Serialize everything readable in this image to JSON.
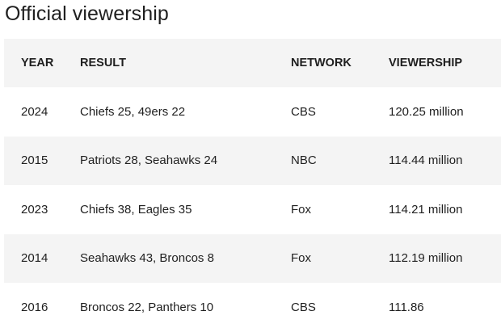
{
  "page": {
    "title": "Official viewership"
  },
  "table": {
    "headers": {
      "year": "YEAR",
      "result": "RESULT",
      "network": "NETWORK",
      "viewership": "VIEWERSHIP"
    },
    "rows": [
      {
        "year": "2024",
        "result": "Chiefs 25, 49ers 22",
        "network": "CBS",
        "viewership": "120.25 million"
      },
      {
        "year": "2015",
        "result": "Patriots 28, Seahawks 24",
        "network": "NBC",
        "viewership": "114.44 million"
      },
      {
        "year": "2023",
        "result": "Chiefs 38, Eagles 35",
        "network": "Fox",
        "viewership": "114.21 million"
      },
      {
        "year": "2014",
        "result": "Seahawks 43, Broncos 8",
        "network": "Fox",
        "viewership": "112.19 million"
      },
      {
        "year": "2016",
        "result": "Broncos 22, Panthers 10",
        "network": "CBS",
        "viewership": "111.86"
      }
    ]
  }
}
